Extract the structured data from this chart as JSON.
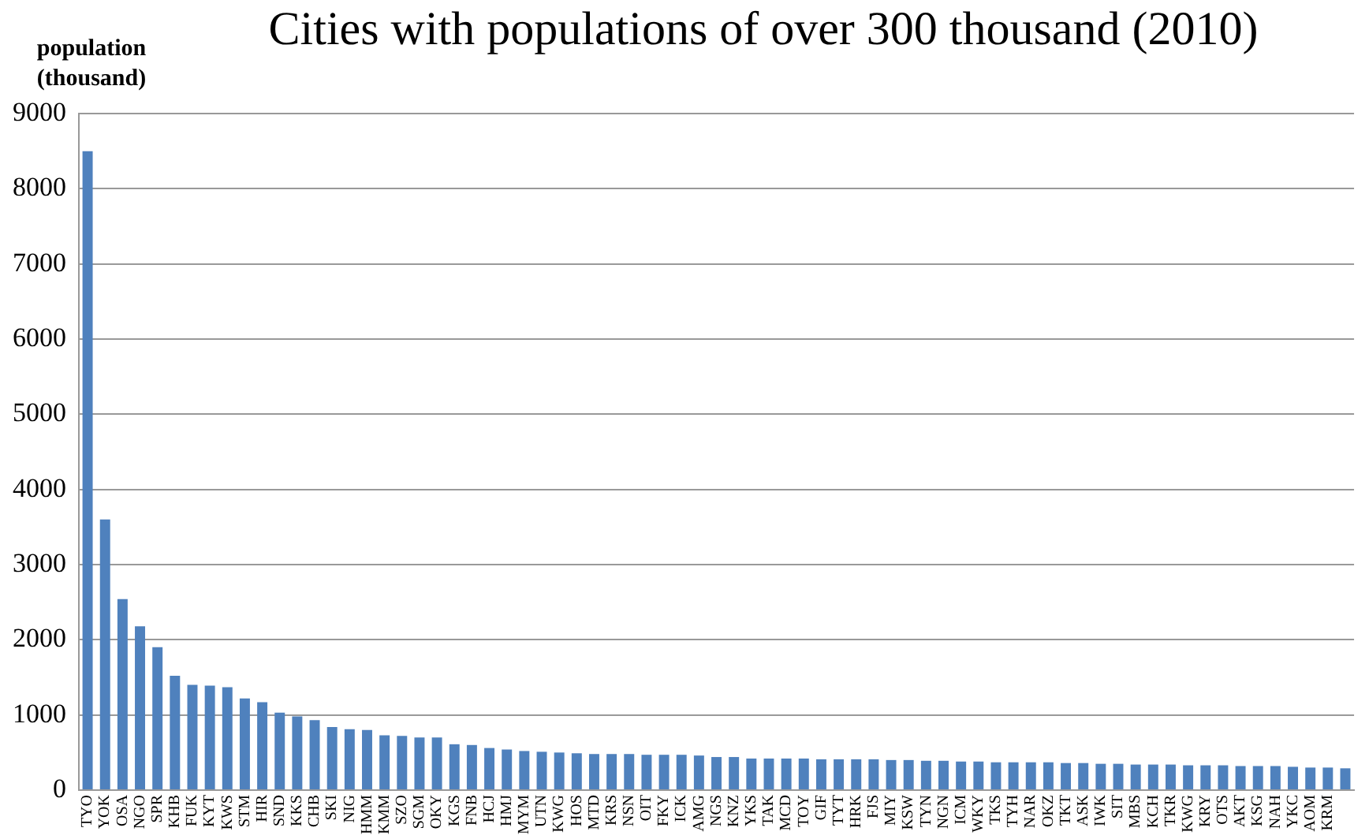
{
  "chart_data": {
    "type": "bar",
    "title": "Cities with populations of over 300 thousand (2010)",
    "ylabel": "population (thousand)",
    "categories": [
      "TYO",
      "YOK",
      "OSA",
      "NGO",
      "SPR",
      "KHB",
      "FUK",
      "KYT",
      "KWS",
      "STM",
      "HIR",
      "SND",
      "KKS",
      "CHB",
      "SKI",
      "NIG",
      "HMM",
      "KMM",
      "SZO",
      "SGM",
      "OKY",
      "KGS",
      "FNB",
      "HCJ",
      "HMJ",
      "MYM",
      "UTN",
      "KWG",
      "HOS",
      "MTD",
      "KRS",
      "NSN",
      "OIT",
      "FKY",
      "ICK",
      "AMG",
      "NGS",
      "KNZ",
      "YKS",
      "TAK",
      "MCD",
      "TOY",
      "GIF",
      "TYT",
      "HRK",
      "FJS",
      "MIY",
      "KSW",
      "TYN",
      "NGN",
      "ICM",
      "WKY",
      "TKS",
      "TYH",
      "NAR",
      "OKZ",
      "TKT",
      "ASK",
      "IWK",
      "SIT",
      "MBS",
      "KCH",
      "TKR",
      "KWG",
      "KRY",
      "OTS",
      "AKT",
      "KSG",
      "NAH",
      "YKC",
      "AOM",
      "KRM",
      null
    ],
    "values": [
      8500,
      3600,
      2540,
      2180,
      1900,
      1520,
      1400,
      1390,
      1370,
      1220,
      1170,
      1030,
      980,
      930,
      840,
      810,
      800,
      730,
      720,
      700,
      700,
      610,
      600,
      560,
      540,
      520,
      510,
      500,
      490,
      480,
      480,
      480,
      470,
      470,
      470,
      460,
      440,
      440,
      420,
      420,
      420,
      420,
      410,
      410,
      410,
      410,
      400,
      400,
      390,
      390,
      380,
      380,
      370,
      370,
      370,
      370,
      360,
      360,
      350,
      350,
      340,
      340,
      340,
      330,
      330,
      330,
      320,
      320,
      320,
      310,
      300,
      300,
      290
    ],
    "color": "#4f81bd",
    "ylim": [
      0,
      9000
    ],
    "yticks": [
      0,
      1000,
      2000,
      3000,
      4000,
      5000,
      6000,
      7000,
      8000,
      9000
    ],
    "grid": "y"
  }
}
